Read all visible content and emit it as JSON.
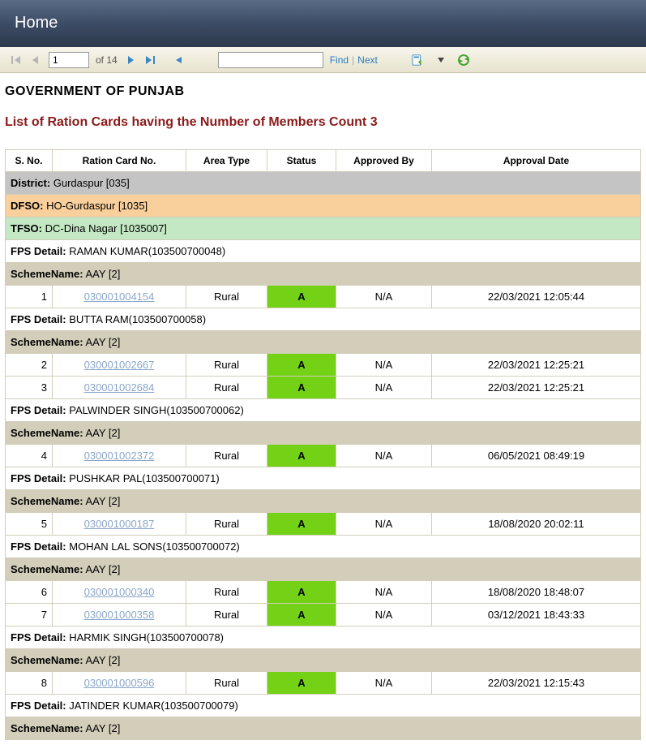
{
  "nav": {
    "home": "Home"
  },
  "toolbar": {
    "page_current": "1",
    "page_total": "of 14",
    "find": "Find",
    "next": "Next"
  },
  "header": {
    "gov_title": "GOVERNMENT OF  PUNJAB",
    "list_title": "List of Ration Cards having the Number of Members Count   3"
  },
  "columns": {
    "sno": "S. No.",
    "rcno": "Ration Card No.",
    "area": "Area Type",
    "status": "Status",
    "approved_by": "Approved By",
    "approval_date": "Approval Date"
  },
  "labels": {
    "district": "District:",
    "dfso": "DFSO:",
    "tfso": "TFSO:",
    "fps": "FPS Detail:",
    "scheme": "SchemeName:"
  },
  "groups": {
    "district": " Gurdaspur [035]",
    "dfso": " HO-Gurdaspur [1035]",
    "tfso": " DC-Dina Nagar [1035007]"
  },
  "sections": [
    {
      "fps": " RAMAN KUMAR(103500700048)",
      "scheme": " AAY [2]",
      "rows": [
        {
          "sno": "1",
          "rc": "030001004154",
          "area": "Rural",
          "status": "A",
          "by": "N/A",
          "date": "22/03/2021 12:05:44"
        }
      ]
    },
    {
      "fps": " BUTTA RAM(103500700058)",
      "scheme": " AAY [2]",
      "rows": [
        {
          "sno": "2",
          "rc": "030001002667",
          "area": "Rural",
          "status": "A",
          "by": "N/A",
          "date": "22/03/2021 12:25:21"
        },
        {
          "sno": "3",
          "rc": "030001002684",
          "area": "Rural",
          "status": "A",
          "by": "N/A",
          "date": "22/03/2021 12:25:21"
        }
      ]
    },
    {
      "fps": " PALWINDER SINGH(103500700062)",
      "scheme": " AAY [2]",
      "rows": [
        {
          "sno": "4",
          "rc": "030001002372",
          "area": "Rural",
          "status": "A",
          "by": "N/A",
          "date": "06/05/2021 08:49:19"
        }
      ]
    },
    {
      "fps": " PUSHKAR PAL(103500700071)",
      "scheme": " AAY [2]",
      "rows": [
        {
          "sno": "5",
          "rc": "030001000187",
          "area": "Rural",
          "status": "A",
          "by": "N/A",
          "date": "18/08/2020 20:02:11"
        }
      ]
    },
    {
      "fps": " MOHAN LAL  SONS(103500700072)",
      "scheme": " AAY [2]",
      "rows": [
        {
          "sno": "6",
          "rc": "030001000340",
          "area": "Rural",
          "status": "A",
          "by": "N/A",
          "date": "18/08/2020 18:48:07"
        },
        {
          "sno": "7",
          "rc": "030001000358",
          "area": "Rural",
          "status": "A",
          "by": "N/A",
          "date": "03/12/2021 18:43:33"
        }
      ]
    },
    {
      "fps": " HARMIK SINGH(103500700078)",
      "scheme": " AAY [2]",
      "rows": [
        {
          "sno": "8",
          "rc": "030001000596",
          "area": "Rural",
          "status": "A",
          "by": "N/A",
          "date": "22/03/2021 12:15:43"
        }
      ]
    },
    {
      "fps": " JATINDER KUMAR(103500700079)",
      "scheme": " AAY [2]",
      "rows": []
    }
  ],
  "colors": {
    "district_bg": "#c4c4c4",
    "dfso_bg": "#f9cf9c",
    "tfso_bg": "#c3e8c3",
    "scheme_bg": "#d2ceb9",
    "status_bg": "#73d216",
    "title_color": "#8b1a1a",
    "link_color": "#277cc1"
  }
}
